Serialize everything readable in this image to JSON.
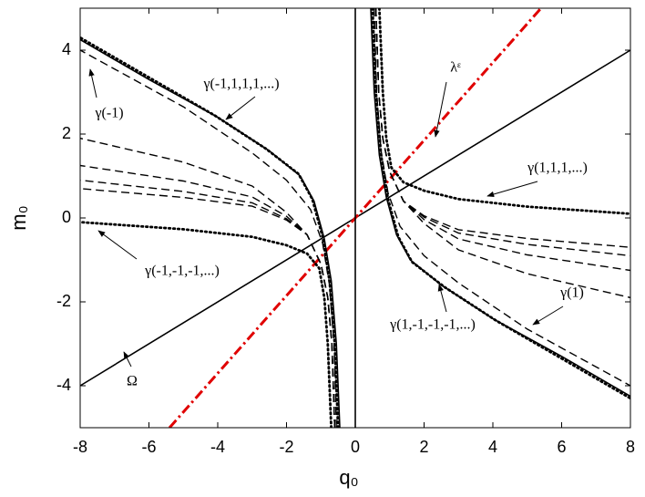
{
  "chart_data": {
    "type": "line",
    "xlabel": "q₀",
    "ylabel": "m₀",
    "xlim": [
      -8,
      8
    ],
    "ylim": [
      -5,
      5
    ],
    "xticks": [
      -8,
      -6,
      -4,
      -2,
      0,
      2,
      4,
      6,
      8
    ],
    "yticks": [
      -4,
      -2,
      0,
      2,
      4
    ],
    "series": [
      {
        "color": "#000000",
        "style": "solid",
        "x": [
          -8,
          8
        ],
        "values": [
          -4,
          4
        ]
      },
      {
        "color": "#e00000",
        "style": "dashdot",
        "x": [
          -5.4,
          5.4
        ],
        "values": [
          -5,
          5
        ]
      },
      {
        "color": "#000000",
        "style": "solid",
        "x": [
          0,
          0
        ],
        "values": [
          -5,
          5
        ]
      },
      {
        "color": "#000000",
        "style": "solid",
        "x": [
          0.45,
          0.55,
          0.7,
          0.9,
          1.2,
          1.6,
          2.5,
          4,
          6,
          8
        ],
        "values": [
          5,
          3,
          1.5,
          0.5,
          -0.4,
          -1,
          -1.6,
          -2.4,
          -3.3,
          -4.25
        ]
      },
      {
        "color": "#000000",
        "style": "solid",
        "x": [
          -0.45,
          -0.55,
          -0.7,
          -0.9,
          -1.2,
          -1.6,
          -2.5,
          -4,
          -6,
          -8
        ],
        "values": [
          -5,
          -3,
          -1.5,
          -0.5,
          0.4,
          1,
          1.6,
          2.4,
          3.3,
          4.25
        ]
      },
      {
        "color": "#000000",
        "style": "dotted",
        "x": [
          0.5,
          0.6,
          0.75,
          0.95,
          1.25,
          1.65,
          2.6,
          4.1,
          6,
          8
        ],
        "values": [
          5,
          3,
          1.5,
          0.45,
          -0.45,
          -1.05,
          -1.65,
          -2.45,
          -3.35,
          -4.3
        ]
      },
      {
        "color": "#000000",
        "style": "dotted",
        "x": [
          -0.5,
          -0.6,
          -0.75,
          -0.95,
          -1.25,
          -1.65,
          -2.6,
          -4.1,
          -6,
          -8
        ],
        "values": [
          -5,
          -3,
          -1.5,
          -0.45,
          0.45,
          1.05,
          1.65,
          2.45,
          3.35,
          4.3
        ]
      },
      {
        "color": "#000000",
        "style": "dashed",
        "x": [
          0.55,
          0.62,
          0.75,
          0.95,
          1.3,
          2,
          3,
          5,
          8
        ],
        "values": [
          5,
          3,
          1.6,
          0.6,
          -0.2,
          -0.9,
          -1.55,
          -2.65,
          -4
        ]
      },
      {
        "color": "#000000",
        "style": "dashed",
        "x": [
          -0.55,
          -0.62,
          -0.75,
          -0.95,
          -1.3,
          -2,
          -3,
          -5,
          -8
        ],
        "values": [
          -5,
          -3,
          -1.6,
          -0.6,
          0.2,
          0.9,
          1.55,
          2.65,
          4
        ]
      },
      {
        "color": "#000000",
        "style": "dashed",
        "x": [
          0.6,
          0.68,
          0.8,
          1,
          1.4,
          2,
          3,
          5,
          8
        ],
        "values": [
          5,
          3,
          1.9,
          1.1,
          0.4,
          -0.13,
          -0.76,
          -1.33,
          -1.9
        ]
      },
      {
        "color": "#000000",
        "style": "dashed",
        "x": [
          -0.6,
          -0.68,
          -0.8,
          -1,
          -1.4,
          -2,
          -3,
          -5,
          -8
        ],
        "values": [
          -5,
          -3,
          -1.9,
          -1.1,
          -0.4,
          0.13,
          0.76,
          1.33,
          1.9
        ]
      },
      {
        "color": "#000000",
        "style": "dashed",
        "x": [
          0.6,
          0.68,
          0.8,
          1,
          1.4,
          2,
          3,
          5,
          8
        ],
        "values": [
          5,
          3,
          1.9,
          1.1,
          0.4,
          -0.04,
          -0.5,
          -0.88,
          -1.25
        ]
      },
      {
        "color": "#000000",
        "style": "dashed",
        "x": [
          -0.6,
          -0.68,
          -0.8,
          -1,
          -1.4,
          -2,
          -3,
          -5,
          -8
        ],
        "values": [
          -5,
          -3,
          -1.9,
          -1.1,
          -0.4,
          0.04,
          0.5,
          0.88,
          1.25
        ]
      },
      {
        "color": "#000000",
        "style": "dashed",
        "x": [
          0.6,
          0.68,
          0.8,
          1,
          1.4,
          2,
          3,
          5,
          8
        ],
        "values": [
          5,
          3,
          1.9,
          1.1,
          0.4,
          0.02,
          -0.36,
          -0.63,
          -0.9
        ]
      },
      {
        "color": "#000000",
        "style": "dashed",
        "x": [
          -0.6,
          -0.68,
          -0.8,
          -1,
          -1.4,
          -2,
          -3,
          -5,
          -8
        ],
        "values": [
          -5,
          -3,
          -1.9,
          -1.1,
          -0.4,
          -0.02,
          0.36,
          0.63,
          0.9
        ]
      },
      {
        "color": "#000000",
        "style": "dashed",
        "x": [
          0.6,
          0.68,
          0.8,
          1,
          1.4,
          2,
          3,
          5,
          8
        ],
        "values": [
          5,
          3,
          1.9,
          1.1,
          0.4,
          0.05,
          -0.28,
          -0.49,
          -0.7
        ]
      },
      {
        "color": "#000000",
        "style": "dashed",
        "x": [
          -0.6,
          -0.68,
          -0.8,
          -1,
          -1.4,
          -2,
          -3,
          -5,
          -8
        ],
        "values": [
          -5,
          -3,
          -1.9,
          -1.1,
          -0.4,
          -0.05,
          0.28,
          0.49,
          0.7
        ]
      },
      {
        "color": "#000000",
        "style": "dotted",
        "x": [
          0.7,
          0.8,
          0.9,
          1.05,
          1.4,
          2,
          3,
          5,
          8
        ],
        "values": [
          5,
          3,
          1.9,
          1.2,
          0.85,
          0.65,
          0.45,
          0.27,
          0.1
        ]
      },
      {
        "color": "#000000",
        "style": "dotted",
        "x": [
          -0.7,
          -0.8,
          -0.9,
          -1.05,
          -1.4,
          -2,
          -3,
          -5,
          -8
        ],
        "values": [
          -5,
          -3,
          -1.9,
          -1.2,
          -0.85,
          -0.65,
          -0.45,
          -0.27,
          -0.1
        ]
      }
    ],
    "annotations": [
      "γ(-1)",
      "γ(-1,1,1,1,...)",
      "λᵋ",
      "γ(1,1,1,...)",
      "γ(-1,-1,-1,...)",
      "γ(1)",
      "γ(1,-1,-1,-1,...)",
      "Ω"
    ]
  }
}
